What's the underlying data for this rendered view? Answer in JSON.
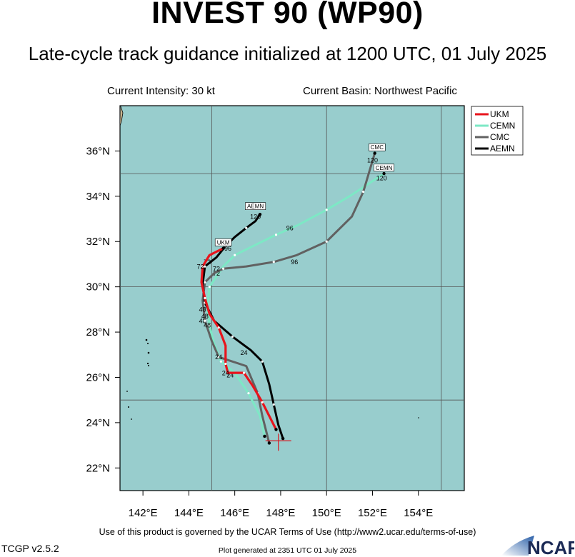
{
  "header": {
    "title": "INVEST 90 (WP90)",
    "subtitle": "Late-cycle track guidance initialized at 1200 UTC, 01 July 2025",
    "intensity": "Current Intensity: 30 kt",
    "basin": "Current Basin: Northwest Pacific"
  },
  "footer": {
    "terms": "Use of this product is governed by the UCAR Terms of Use (http://www2.ucar.edu/terms-of-use)",
    "version": "TCGP v2.5.2",
    "generated": "Plot generated at 2351 UTC   01 July 2025",
    "logo_text": "NCAR"
  },
  "colors": {
    "ocean": "#98cdcd",
    "UKM": "#e8141c",
    "CEMN": "#7de8c5",
    "CMC": "#616161",
    "AEMN": "#000000"
  },
  "chart_data": {
    "type": "map",
    "xlim": [
      141,
      156
    ],
    "ylim": [
      21,
      38
    ],
    "x_ticks": [
      142,
      144,
      146,
      148,
      150,
      152,
      154
    ],
    "x_tick_labels": [
      "142°E",
      "144°E",
      "146°E",
      "148°E",
      "150°E",
      "152°E",
      "154°E"
    ],
    "y_ticks": [
      22,
      24,
      26,
      28,
      30,
      32,
      34,
      36
    ],
    "y_tick_labels": [
      "22°N",
      "24°N",
      "26°N",
      "28°N",
      "30°N",
      "32°N",
      "34°N",
      "36°N"
    ],
    "gridlines_lon": [
      145,
      150,
      155
    ],
    "gridlines_lat": [
      25,
      30,
      35
    ],
    "legend_position": "top-right",
    "current_position": [
      147.9,
      23.2
    ],
    "tracks": [
      {
        "name": "UKM",
        "points": [
          [
            147.8,
            23.7
          ],
          [
            147.5,
            24.3
          ],
          [
            147.2,
            24.9
          ],
          [
            146.8,
            25.6
          ],
          [
            146.4,
            26.2
          ],
          [
            145.7,
            26.2
          ],
          [
            145.6,
            26.6
          ],
          [
            145.6,
            27.4
          ],
          [
            145.3,
            28.2
          ],
          [
            144.9,
            28.8
          ],
          [
            144.7,
            29.5
          ],
          [
            144.55,
            30.2
          ],
          [
            144.6,
            30.9
          ],
          [
            144.9,
            31.4
          ],
          [
            145.5,
            31.7
          ]
        ],
        "labels": [
          {
            "text": "24",
            "at": [
              145.6,
              26.1
            ]
          },
          {
            "text": "48",
            "at": [
              144.7,
              28.6
            ]
          },
          {
            "text": "72",
            "at": [
              144.5,
              30.8
            ]
          },
          {
            "text": "96",
            "at": [
              145.7,
              31.6
            ]
          }
        ],
        "end_tag": {
          "text": "UKM",
          "at": [
            145.5,
            31.9
          ]
        }
      },
      {
        "name": "CEMN",
        "points": [
          [
            147.3,
            23.4
          ],
          [
            147.1,
            24.3
          ],
          [
            146.6,
            25.3
          ],
          [
            146.0,
            26.2
          ],
          [
            145.4,
            26.7
          ],
          [
            145.1,
            27.5
          ],
          [
            144.9,
            28.3
          ],
          [
            144.8,
            29.1
          ],
          [
            144.9,
            30.0
          ],
          [
            145.5,
            30.9
          ],
          [
            146.0,
            31.4
          ],
          [
            146.8,
            31.8
          ],
          [
            147.8,
            32.3
          ],
          [
            148.7,
            32.7
          ],
          [
            150.0,
            33.4
          ],
          [
            151.0,
            34.0
          ],
          [
            152.5,
            35.0
          ]
        ],
        "labels": [
          {
            "text": "24",
            "at": [
              145.8,
              26.0
            ]
          },
          {
            "text": "48",
            "at": [
              144.6,
              28.4
            ]
          },
          {
            "text": "72",
            "at": [
              145.2,
              30.5
            ]
          },
          {
            "text": "96",
            "at": [
              148.4,
              32.5
            ]
          },
          {
            "text": "120",
            "at": [
              152.4,
              34.7
            ]
          }
        ],
        "end_tag": {
          "text": "CEMN",
          "at": [
            152.5,
            35.2
          ]
        }
      },
      {
        "name": "CMC",
        "points": [
          [
            147.5,
            23.1
          ],
          [
            147.2,
            24.3
          ],
          [
            147.0,
            25.3
          ],
          [
            146.5,
            26.5
          ],
          [
            145.3,
            26.9
          ],
          [
            145.0,
            27.6
          ],
          [
            144.7,
            28.5
          ],
          [
            144.6,
            29.4
          ],
          [
            144.7,
            30.2
          ],
          [
            145.1,
            30.6
          ],
          [
            145.5,
            30.8
          ],
          [
            146.5,
            30.9
          ],
          [
            147.7,
            31.1
          ],
          [
            148.7,
            31.4
          ],
          [
            150.0,
            32.0
          ],
          [
            151.1,
            33.1
          ],
          [
            151.6,
            34.2
          ],
          [
            152.1,
            35.9
          ]
        ],
        "labels": [
          {
            "text": "24",
            "at": [
              145.3,
              26.8
            ]
          },
          {
            "text": "48",
            "at": [
              144.6,
              28.9
            ]
          },
          {
            "text": "72",
            "at": [
              145.2,
              30.7
            ]
          },
          {
            "text": "96",
            "at": [
              148.6,
              31.0
            ]
          },
          {
            "text": "120",
            "at": [
              152.0,
              35.5
            ]
          }
        ],
        "end_tag": {
          "text": "CMC",
          "at": [
            152.2,
            36.1
          ]
        }
      },
      {
        "name": "AEMN",
        "points": [
          [
            148.1,
            23.3
          ],
          [
            147.9,
            23.9
          ],
          [
            147.7,
            24.8
          ],
          [
            147.5,
            25.7
          ],
          [
            147.2,
            26.7
          ],
          [
            146.7,
            27.2
          ],
          [
            145.9,
            27.8
          ],
          [
            145.1,
            28.5
          ],
          [
            144.7,
            29.3
          ],
          [
            144.6,
            30.1
          ],
          [
            144.7,
            30.9
          ],
          [
            145.2,
            31.3
          ],
          [
            145.6,
            31.8
          ],
          [
            146.0,
            32.2
          ],
          [
            146.5,
            32.6
          ],
          [
            146.9,
            32.9
          ],
          [
            147.1,
            33.2
          ]
        ],
        "labels": [
          {
            "text": "24",
            "at": [
              146.4,
              27.0
            ]
          },
          {
            "text": "48",
            "at": [
              144.8,
              28.2
            ]
          },
          {
            "text": "72",
            "at": [
              144.8,
              31.0
            ]
          },
          {
            "text": "96",
            "at": [
              145.6,
              31.8
            ]
          },
          {
            "text": "120",
            "at": [
              146.9,
              33.0
            ]
          }
        ],
        "end_tag": {
          "text": "AEMN",
          "at": [
            146.9,
            33.5
          ]
        }
      }
    ]
  }
}
